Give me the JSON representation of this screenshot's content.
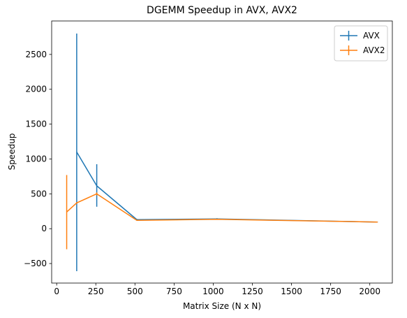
{
  "chart_data": {
    "type": "line",
    "title": "DGEMM Speedup in AVX, AVX2",
    "xlabel": "Matrix Size (N x N)",
    "ylabel": "Speedup",
    "xlim": [
      -32,
      2144
    ],
    "ylim": [
      -780,
      2980
    ],
    "xticks": [
      0,
      250,
      500,
      750,
      1000,
      1250,
      1500,
      1750,
      2000
    ],
    "yticks": [
      -500,
      0,
      500,
      1000,
      1500,
      2000,
      2500
    ],
    "grid": false,
    "legend_position": "top-right",
    "series": [
      {
        "name": "AVX",
        "color": "#1f77b4",
        "x": [
          128,
          256,
          512,
          1024,
          2048
        ],
        "y": [
          1100,
          615,
          130,
          140,
          95
        ],
        "err_low": [
          -610,
          315,
          120,
          130,
          90
        ],
        "err_high": [
          2800,
          925,
          140,
          150,
          100
        ]
      },
      {
        "name": "AVX2",
        "color": "#ff7f0e",
        "x": [
          64,
          128,
          256,
          512,
          1024,
          2048
        ],
        "y": [
          240,
          370,
          500,
          120,
          135,
          95
        ],
        "err_low": [
          -295,
          360,
          480,
          115,
          128,
          90
        ],
        "err_high": [
          770,
          380,
          520,
          125,
          142,
          100
        ]
      }
    ]
  }
}
